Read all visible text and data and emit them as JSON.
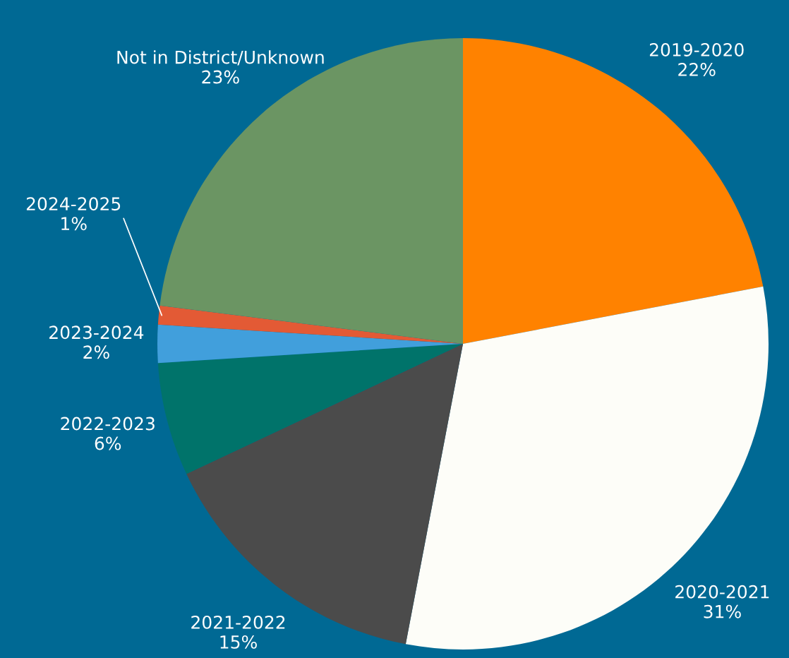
{
  "chart_data": {
    "type": "pie",
    "categories": [
      "2019-2020",
      "2020-2021",
      "2021-2022",
      "2022-2023",
      "2023-2024",
      "2024-2025",
      "Not in District/Unknown"
    ],
    "values": [
      22,
      31,
      15,
      6,
      2,
      1,
      23
    ],
    "value_labels": [
      "22%",
      "31%",
      "15%",
      "6%",
      "2%",
      "1%",
      "23%"
    ],
    "colors": [
      "#ff8200",
      "#fdfdf8",
      "#4b4b4b",
      "#00736a",
      "#419fdc",
      "#e35a35",
      "#6b9563"
    ],
    "legend": false
  }
}
